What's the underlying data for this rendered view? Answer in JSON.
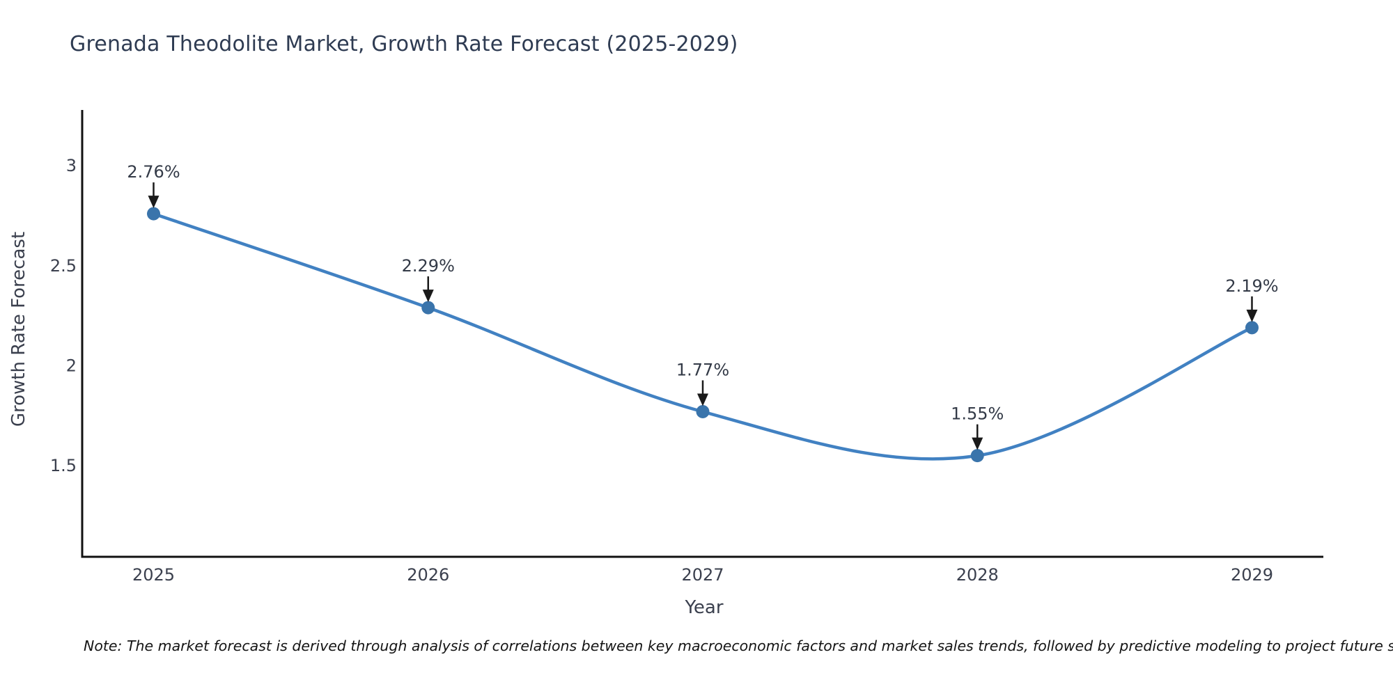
{
  "title": "Grenada Theodolite Market, Growth Rate Forecast (2025-2029)",
  "note": "Note: The market forecast is derived through analysis of correlations between key macroeconomic factors and market sales trends, followed by predictive modeling to project future sales",
  "chart_data": {
    "type": "line",
    "line_shape": "spline",
    "x": [
      2025,
      2026,
      2027,
      2028,
      2029
    ],
    "values": [
      2.76,
      2.29,
      1.77,
      1.55,
      2.19
    ],
    "point_labels": [
      "2.76%",
      "2.29%",
      "1.77%",
      "1.55%",
      "2.19%"
    ],
    "title": "Grenada Theodolite Market, Growth Rate Forecast (2025-2029)",
    "xlabel": "Year",
    "ylabel": "Growth Rate Forecast",
    "xticks": [
      "2025",
      "2026",
      "2027",
      "2028",
      "2029"
    ],
    "yticks": [
      "1.5",
      "2",
      "2.5",
      "3"
    ],
    "xlim": [
      2024.74,
      2029.26
    ],
    "ylim": [
      1.044,
      3.279
    ],
    "grid": false,
    "legend": "none",
    "markers": true,
    "annotations_have_arrows": true,
    "colors": {
      "line": "#4181c2",
      "marker": "#3a74ab",
      "axis": "#111111",
      "tick_text": "#3b404e",
      "annotation_text": "#333a47",
      "arrow": "#1a1a1a",
      "title_text": "#2e3b52",
      "background": "#ffffff"
    }
  }
}
